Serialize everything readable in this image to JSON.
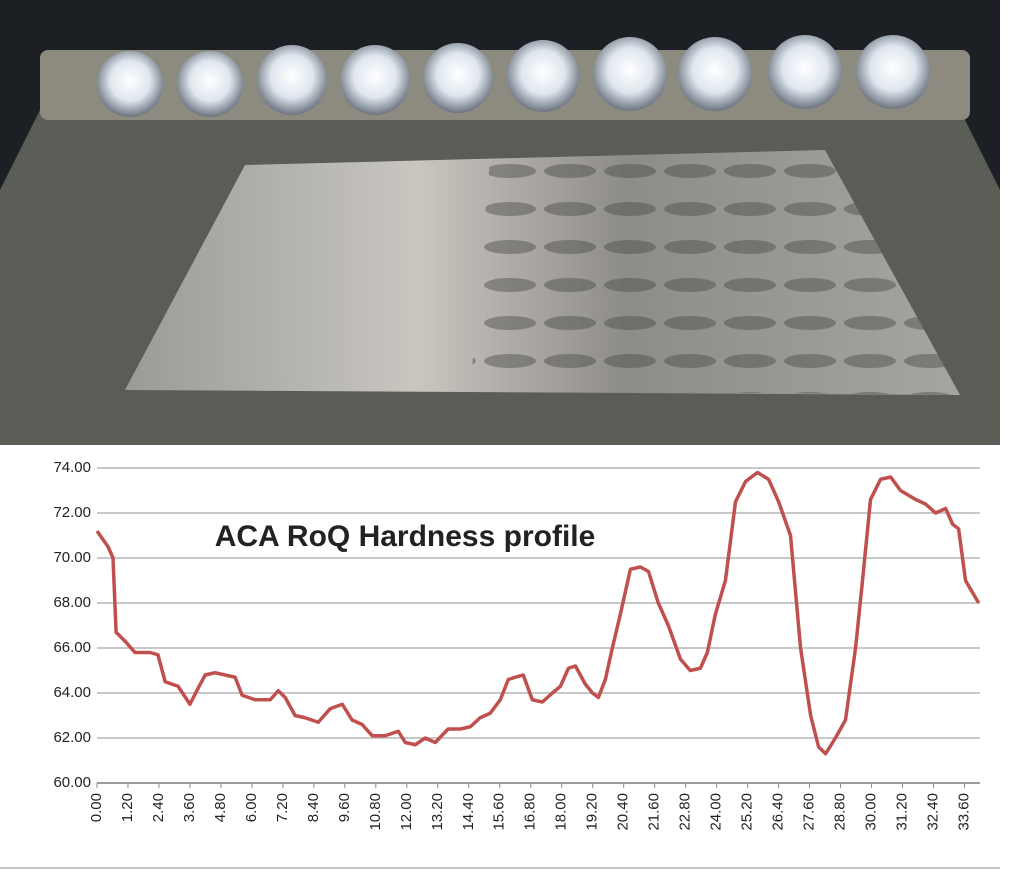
{
  "chart_data": {
    "type": "line",
    "title": "ACA RoQ Hardness profile",
    "color": "#c0504d",
    "grid": true,
    "xlim": [
      0,
      34.2
    ],
    "ylim": [
      60,
      74
    ],
    "yticks": [
      {
        "value": 60,
        "label": "60.00"
      },
      {
        "value": 62,
        "label": "62.00"
      },
      {
        "value": 64,
        "label": "64.00"
      },
      {
        "value": 66,
        "label": "66.00"
      },
      {
        "value": 68,
        "label": "68.00"
      },
      {
        "value": 70,
        "label": "70.00"
      },
      {
        "value": 72,
        "label": "72.00"
      },
      {
        "value": 74,
        "label": "74.00"
      }
    ],
    "xticks": [
      {
        "value": 0,
        "label": "0.00"
      },
      {
        "value": 1.2,
        "label": "1.20"
      },
      {
        "value": 2.4,
        "label": "2.40"
      },
      {
        "value": 3.6,
        "label": "3.60"
      },
      {
        "value": 4.8,
        "label": "4.80"
      },
      {
        "value": 6,
        "label": "6.00"
      },
      {
        "value": 7.2,
        "label": "7.20"
      },
      {
        "value": 8.4,
        "label": "8.40"
      },
      {
        "value": 9.6,
        "label": "9.60"
      },
      {
        "value": 10.8,
        "label": "10.80"
      },
      {
        "value": 12,
        "label": "12.00"
      },
      {
        "value": 13.2,
        "label": "13.20"
      },
      {
        "value": 14.4,
        "label": "14.40"
      },
      {
        "value": 15.6,
        "label": "15.60"
      },
      {
        "value": 16.8,
        "label": "16.80"
      },
      {
        "value": 18,
        "label": "18.00"
      },
      {
        "value": 19.2,
        "label": "19.20"
      },
      {
        "value": 20.4,
        "label": "20.40"
      },
      {
        "value": 21.6,
        "label": "21.60"
      },
      {
        "value": 22.8,
        "label": "22.80"
      },
      {
        "value": 24,
        "label": "24.00"
      },
      {
        "value": 25.2,
        "label": "25.20"
      },
      {
        "value": 26.4,
        "label": "26.40"
      },
      {
        "value": 27.6,
        "label": "27.60"
      },
      {
        "value": 28.8,
        "label": "28.80"
      },
      {
        "value": 30,
        "label": "30.00"
      },
      {
        "value": 31.2,
        "label": "31.20"
      },
      {
        "value": 32.4,
        "label": "32.40"
      },
      {
        "value": 33.6,
        "label": "33.60"
      }
    ],
    "x": [
      0,
      0.43,
      0.62,
      0.74,
      1.09,
      1.47,
      2.05,
      2.36,
      2.64,
      3.14,
      3.6,
      3.91,
      4.19,
      4.57,
      4.96,
      5.35,
      5.62,
      6.12,
      6.71,
      7.02,
      7.29,
      7.67,
      8.06,
      8.57,
      9.03,
      9.5,
      9.88,
      10.27,
      10.66,
      11.16,
      11.67,
      11.94,
      12.33,
      12.71,
      13.1,
      13.6,
      14.07,
      14.46,
      14.84,
      15.23,
      15.62,
      15.93,
      16.2,
      16.51,
      16.86,
      17.25,
      17.64,
      17.95,
      18.26,
      18.53,
      18.91,
      19.19,
      19.42,
      19.69,
      19.96,
      20.27,
      20.66,
      21.05,
      21.36,
      21.74,
      22.13,
      22.6,
      22.98,
      23.37,
      23.64,
      23.95,
      24.34,
      24.73,
      25.12,
      25.58,
      26.01,
      26.4,
      26.86,
      27.25,
      27.64,
      27.95,
      28.22,
      28.6,
      28.99,
      29.38,
      29.65,
      29.96,
      30.35,
      30.74,
      31.12,
      31.71,
      32.09,
      32.48,
      32.87,
      33.14,
      33.37,
      33.64,
      33.84,
      34.15
    ],
    "values": [
      71.2,
      70.5,
      70.0,
      66.7,
      66.3,
      65.8,
      65.8,
      65.7,
      64.5,
      64.3,
      63.5,
      64.2,
      64.8,
      64.9,
      64.8,
      64.7,
      63.9,
      63.7,
      63.7,
      64.1,
      63.8,
      63.0,
      62.9,
      62.7,
      63.3,
      63.5,
      62.8,
      62.6,
      62.1,
      62.1,
      62.3,
      61.8,
      61.7,
      62.0,
      61.8,
      62.4,
      62.4,
      62.5,
      62.9,
      63.1,
      63.7,
      64.6,
      64.7,
      64.8,
      63.7,
      63.6,
      64.0,
      64.3,
      65.1,
      65.2,
      64.4,
      64.0,
      63.8,
      64.6,
      66.0,
      67.5,
      69.5,
      69.6,
      69.4,
      68.0,
      67.0,
      65.5,
      65.0,
      65.1,
      65.8,
      67.5,
      69.0,
      72.5,
      73.4,
      73.8,
      73.5,
      72.5,
      71.0,
      66.0,
      63.0,
      61.6,
      61.3,
      62.0,
      62.8,
      66.0,
      69.0,
      72.6,
      73.5,
      73.6,
      73.0,
      72.6,
      72.4,
      72.0,
      72.2,
      71.5,
      71.3,
      69.0,
      68.6,
      68.0
    ]
  }
}
